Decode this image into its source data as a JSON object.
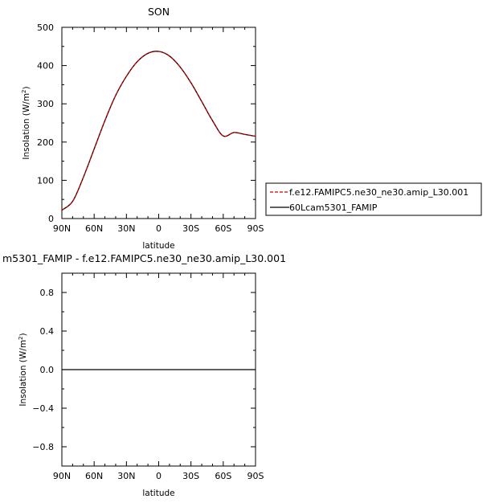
{
  "chart_data": [
    {
      "type": "line",
      "title": "SON",
      "xlabel": "latitude",
      "ylabel": "Insolation (W/m²)",
      "ylabel_main": "Insolation (W/m",
      "ylabel_sup": "2",
      "ylabel_end": ")",
      "xlim": [
        90,
        -90
      ],
      "ylim": [
        0,
        500
      ],
      "xticks": [
        90,
        60,
        30,
        0,
        -30,
        -60,
        -90
      ],
      "xtick_labels": [
        "90N",
        "60N",
        "30N",
        "0",
        "30S",
        "60S",
        "90S"
      ],
      "yticks": [
        0,
        100,
        200,
        300,
        400,
        500
      ],
      "ytick_labels": [
        "0",
        "100",
        "200",
        "300",
        "400",
        "500"
      ],
      "grid": false,
      "legend_placement": "right",
      "series": [
        {
          "name": "f.e12.FAMIPC5.ne30_ne30.amip_L30.001",
          "color": "#cc0000",
          "dash": "dashed",
          "x": [
            90,
            80,
            70,
            60,
            50,
            40,
            30,
            20,
            10,
            0,
            -10,
            -20,
            -30,
            -40,
            -50,
            -60,
            -70,
            -80,
            -90
          ],
          "values": [
            22,
            45,
            108,
            182,
            256,
            322,
            372,
            410,
            432,
            437,
            425,
            396,
            355,
            306,
            256,
            216,
            225,
            220,
            215
          ]
        },
        {
          "name": "60Lcam5301_FAMIP",
          "color": "#000000",
          "dash": "solid",
          "x": [
            90,
            80,
            70,
            60,
            50,
            40,
            30,
            20,
            10,
            0,
            -10,
            -20,
            -30,
            -40,
            -50,
            -60,
            -70,
            -80,
            -90
          ],
          "values": [
            22,
            45,
            108,
            182,
            256,
            322,
            372,
            410,
            432,
            437,
            425,
            396,
            355,
            306,
            256,
            216,
            225,
            220,
            215
          ]
        }
      ]
    },
    {
      "type": "line",
      "title": "m5301_FAMIP - f.e12.FAMIPC5.ne30_ne30.amip_L30.001",
      "xlabel": "latitude",
      "ylabel": "Insolation (W/m²)",
      "ylabel_main": "Insolation (W/m",
      "ylabel_sup": "2",
      "ylabel_end": ")",
      "xlim": [
        90,
        -90
      ],
      "ylim": [
        -1,
        1
      ],
      "xticks": [
        90,
        60,
        30,
        0,
        -30,
        -60,
        -90
      ],
      "xtick_labels": [
        "90N",
        "60N",
        "30N",
        "0",
        "30S",
        "60S",
        "90S"
      ],
      "yticks": [
        0.8,
        0.4,
        0.0,
        -0.4,
        -0.8
      ],
      "ytick_labels": [
        "0.8",
        "0.4",
        "0.0",
        "−0.4",
        "−0.8"
      ],
      "grid": false,
      "series": [
        {
          "color": "#000000",
          "dash": "solid",
          "x": [
            90,
            -90
          ],
          "values": [
            0,
            0
          ]
        }
      ]
    }
  ]
}
